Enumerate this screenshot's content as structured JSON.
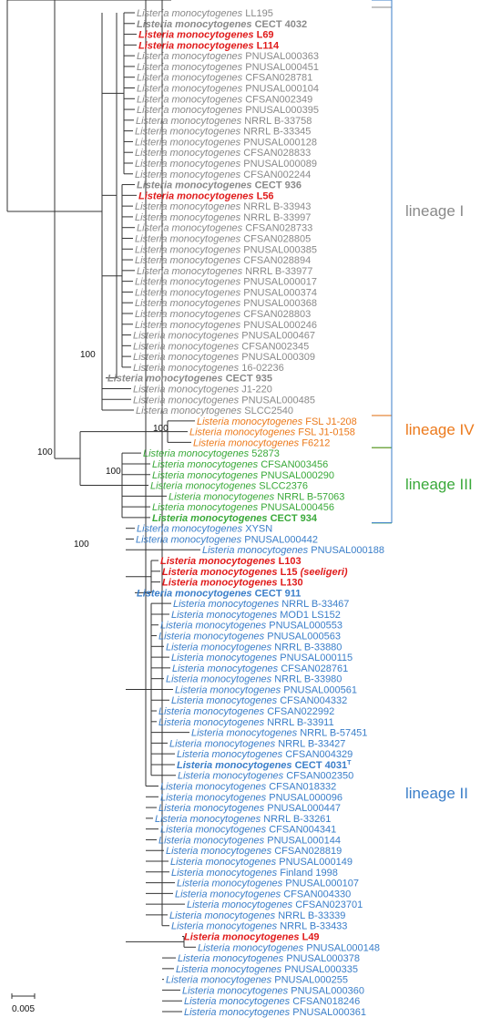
{
  "species": "Listeria monocytogenes",
  "colors": {
    "lineage_I": "#8a8a8a",
    "lineage_IV": "#ec7a1c",
    "lineage_III": "#3aa93a",
    "lineage_II": "#3a7ec9",
    "highlight": "#e01b1b",
    "branch": "#333333"
  },
  "lineages": [
    {
      "label": "lineage I",
      "color": "#8a8a8a"
    },
    {
      "label": "lineage IV",
      "color": "#ec7a1c"
    },
    {
      "label": "lineage III",
      "color": "#3aa93a"
    },
    {
      "label": "lineage II",
      "color": "#3a7ec9"
    }
  ],
  "bootstrap": [
    "100",
    "100",
    "100",
    "100",
    "100"
  ],
  "scale_bar": {
    "label": "0.005"
  },
  "taxa": [
    {
      "strain": "LL195",
      "group": "I"
    },
    {
      "strain": "CECT 4032",
      "group": "I",
      "bold": true
    },
    {
      "strain": "L69",
      "group": "I",
      "red": true
    },
    {
      "strain": "L114",
      "group": "I",
      "red": true
    },
    {
      "strain": "PNUSAL000363",
      "group": "I"
    },
    {
      "strain": "PNUSAL000451",
      "group": "I"
    },
    {
      "strain": "CFSAN028781",
      "group": "I"
    },
    {
      "strain": "PNUSAL000104",
      "group": "I"
    },
    {
      "strain": "CFSAN002349",
      "group": "I"
    },
    {
      "strain": "PNUSAL000395",
      "group": "I"
    },
    {
      "strain": "NRRL B-33758",
      "group": "I"
    },
    {
      "strain": "NRRL B-33345",
      "group": "I"
    },
    {
      "strain": "PNUSAL000128",
      "group": "I"
    },
    {
      "strain": "CFSAN028833",
      "group": "I"
    },
    {
      "strain": "PNUSAL000089",
      "group": "I"
    },
    {
      "strain": "CFSAN002244",
      "group": "I"
    },
    {
      "strain": "CECT 936",
      "group": "I",
      "bold": true
    },
    {
      "strain": "L56",
      "group": "I",
      "red": true
    },
    {
      "strain": "NRRL B-33943",
      "group": "I"
    },
    {
      "strain": "NRRL B-33997",
      "group": "I"
    },
    {
      "strain": "CFSAN028733",
      "group": "I"
    },
    {
      "strain": "CFSAN028805",
      "group": "I"
    },
    {
      "strain": "PNUSAL000385",
      "group": "I"
    },
    {
      "strain": "CFSAN028894",
      "group": "I"
    },
    {
      "strain": "NRRL B-33977",
      "group": "I"
    },
    {
      "strain": "PNUSAL000017",
      "group": "I"
    },
    {
      "strain": "PNUSAL000374",
      "group": "I"
    },
    {
      "strain": "PNUSAL000368",
      "group": "I"
    },
    {
      "strain": "CFSAN028803",
      "group": "I"
    },
    {
      "strain": "PNUSAL000246",
      "group": "I"
    },
    {
      "strain": "PNUSAL000467",
      "group": "I"
    },
    {
      "strain": "CFSAN002345",
      "group": "I"
    },
    {
      "strain": "PNUSAL000309",
      "group": "I"
    },
    {
      "strain": "16-02236",
      "group": "I"
    },
    {
      "strain": "CECT 935",
      "group": "I",
      "bold": true
    },
    {
      "strain": "J1-220",
      "group": "I"
    },
    {
      "strain": "PNUSAL000485",
      "group": "I"
    },
    {
      "strain": "SLCC2540",
      "group": "I"
    },
    {
      "strain": "FSL J1-208",
      "group": "IV"
    },
    {
      "strain": "FSL J1-0158",
      "group": "IV"
    },
    {
      "strain": "F6212",
      "group": "IV"
    },
    {
      "strain": "52873",
      "group": "III"
    },
    {
      "strain": "CFSAN003456",
      "group": "III"
    },
    {
      "strain": "PNUSAL000290",
      "group": "III"
    },
    {
      "strain": "SLCC2376",
      "group": "III"
    },
    {
      "strain": "NRRL B-57063",
      "group": "III"
    },
    {
      "strain": "PNUSAL000456",
      "group": "III"
    },
    {
      "strain": "CECT 934",
      "group": "III",
      "bold": true
    },
    {
      "strain": "XYSN",
      "group": "II"
    },
    {
      "strain": "PNUSAL000442",
      "group": "II"
    },
    {
      "strain": "PNUSAL000188",
      "group": "II"
    },
    {
      "strain": "L103",
      "group": "II",
      "red": true
    },
    {
      "strain": "L15 (seeligeri)",
      "group": "II",
      "red": true
    },
    {
      "strain": "L130",
      "group": "II",
      "red": true
    },
    {
      "strain": "CECT 911",
      "group": "II",
      "bold": true
    },
    {
      "strain": "NRRL B-33467",
      "group": "II"
    },
    {
      "strain": "MOD1 LS152",
      "group": "II"
    },
    {
      "strain": "PNUSAL000553",
      "group": "II"
    },
    {
      "strain": "PNUSAL000563",
      "group": "II"
    },
    {
      "strain": "NRRL B-33880",
      "group": "II"
    },
    {
      "strain": "PNUSAL000115",
      "group": "II"
    },
    {
      "strain": "CFSAN028761",
      "group": "II"
    },
    {
      "strain": "NRRL B-33980",
      "group": "II"
    },
    {
      "strain": "PNUSAL000561",
      "group": "II"
    },
    {
      "strain": "CFSAN004332",
      "group": "II"
    },
    {
      "strain": "CFSAN022992",
      "group": "II"
    },
    {
      "strain": "NRRL B-33911",
      "group": "II"
    },
    {
      "strain": "NRRL B-57451",
      "group": "II"
    },
    {
      "strain": "NRRL B-33427",
      "group": "II"
    },
    {
      "strain": "CFSAN004329",
      "group": "II"
    },
    {
      "strain": "CECT 4031",
      "group": "II",
      "bold": true,
      "sup": "T"
    },
    {
      "strain": "CFSAN002350",
      "group": "II"
    },
    {
      "strain": "CFSAN018332",
      "group": "II"
    },
    {
      "strain": "PNUSAL000096",
      "group": "II"
    },
    {
      "strain": "PNUSAL000447",
      "group": "II"
    },
    {
      "strain": "NRRL B-33261",
      "group": "II"
    },
    {
      "strain": "CFSAN004341",
      "group": "II"
    },
    {
      "strain": "PNUSAL000144",
      "group": "II"
    },
    {
      "strain": "CFSAN028819",
      "group": "II"
    },
    {
      "strain": "PNUSAL000149",
      "group": "II"
    },
    {
      "strain": "Finland 1998",
      "group": "II"
    },
    {
      "strain": "PNUSAL000107",
      "group": "II"
    },
    {
      "strain": "CFSAN004330",
      "group": "II"
    },
    {
      "strain": "CFSAN023701",
      "group": "II"
    },
    {
      "strain": "NRRL B-33339",
      "group": "II"
    },
    {
      "strain": "NRRL B-33433",
      "group": "II"
    },
    {
      "strain": "L49",
      "group": "II",
      "red": true
    },
    {
      "strain": "PNUSAL000148",
      "group": "II"
    },
    {
      "strain": "PNUSAL000378",
      "group": "II"
    },
    {
      "strain": "PNUSAL000335",
      "group": "II"
    },
    {
      "strain": "PNUSAL000255",
      "group": "II"
    },
    {
      "strain": "PNUSAL000360",
      "group": "II"
    },
    {
      "strain": "CFSAN018246",
      "group": "II"
    },
    {
      "strain": "PNUSAL000361",
      "group": "II"
    }
  ]
}
